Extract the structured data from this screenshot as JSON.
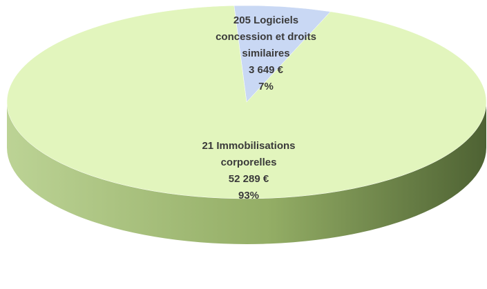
{
  "chart_data": {
    "type": "pie",
    "categories": [
      "205 Logiciels concession et droits similaires",
      "21 Immobilisations corporelles"
    ],
    "values": [
      3649,
      52289
    ],
    "value_labels": [
      "3 649 €",
      "52 289 €"
    ],
    "percentages": [
      7,
      93
    ],
    "percentage_labels": [
      "7%",
      "93%"
    ],
    "colors": [
      "#c9d8f4",
      "#e2f5bd"
    ]
  }
}
